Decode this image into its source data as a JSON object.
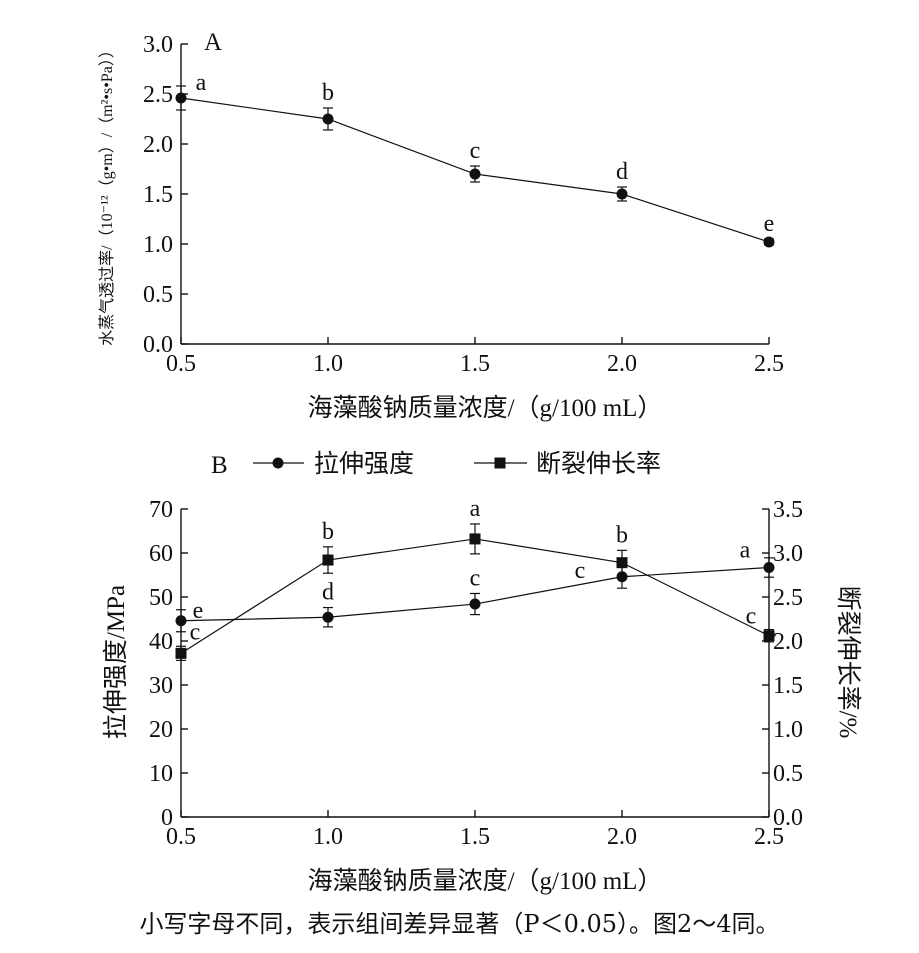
{
  "caption": "小写字母不同，表示组间差异显著（P＜0.05）。图2～4同。",
  "chart_data": [
    {
      "type": "line",
      "panel_label": "A",
      "xlabel": "海藻酸钠质量浓度/（g/100 mL）",
      "ylabel": "水蒸气透过率/（10⁻¹²（g•m）/（m²•s•Pa））",
      "x": [
        0.5,
        1.0,
        1.5,
        2.0,
        2.5
      ],
      "xlim": [
        0.5,
        2.5
      ],
      "ylim": [
        0,
        3.0
      ],
      "x_ticks": [
        "0.5",
        "1.0",
        "1.5",
        "2.0",
        "2.5"
      ],
      "y_ticks": [
        "0.0",
        "0.5",
        "1.0",
        "1.5",
        "2.0",
        "2.5",
        "3.0"
      ],
      "series": [
        {
          "marker": "circle",
          "values": [
            2.46,
            2.25,
            1.7,
            1.5,
            1.02
          ],
          "errors": [
            0.12,
            0.11,
            0.08,
            0.07,
            0.03
          ],
          "letters": [
            "a",
            "b",
            "c",
            "d",
            "e"
          ]
        }
      ],
      "grid": false
    },
    {
      "type": "line",
      "panel_label": "B",
      "xlabel": "海藻酸钠质量浓度/（g/100 mL）",
      "ylabel": "拉伸强度/MPa",
      "y2label": "断裂伸长率/%",
      "x": [
        0.5,
        1.0,
        1.5,
        2.0,
        2.5
      ],
      "xlim": [
        0.5,
        2.5
      ],
      "ylim": [
        0,
        70
      ],
      "y2lim": [
        0,
        3.5
      ],
      "x_ticks": [
        "0.5",
        "1.0",
        "1.5",
        "2.0",
        "2.5"
      ],
      "y_ticks": [
        "0",
        "10",
        "20",
        "30",
        "40",
        "50",
        "60",
        "70"
      ],
      "y2_ticks": [
        "0.0",
        "0.5",
        "1.0",
        "1.5",
        "2.0",
        "2.5",
        "3.0",
        "3.5"
      ],
      "legend_position": "top",
      "series": [
        {
          "name": "拉伸强度",
          "marker": "circle",
          "axis": "left",
          "values": [
            44.6,
            45.4,
            48.4,
            54.6,
            56.7
          ],
          "errors": [
            2.5,
            2.2,
            2.4,
            2.6,
            2.2
          ],
          "letters": [
            "e",
            "d",
            "c",
            "c",
            "a"
          ]
        },
        {
          "name": "断裂伸长率",
          "marker": "square",
          "axis": "right",
          "values": [
            1.86,
            2.92,
            3.16,
            2.89,
            2.06
          ],
          "errors": [
            0.08,
            0.15,
            0.17,
            0.14,
            0.07
          ],
          "letters": [
            "c",
            "b",
            "a",
            "b",
            "c"
          ]
        }
      ],
      "grid": false
    }
  ]
}
